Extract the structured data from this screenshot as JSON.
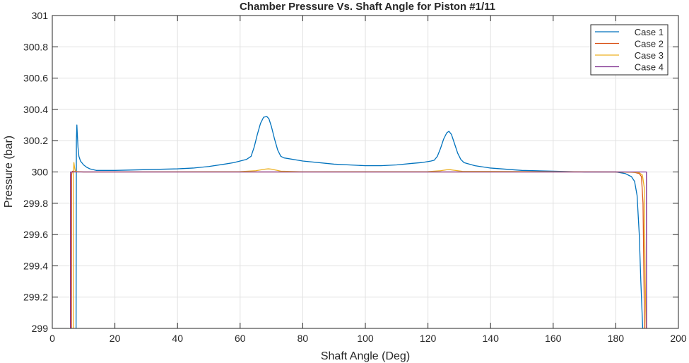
{
  "chart_data": {
    "type": "line",
    "title": "Chamber Pressure Vs. Shaft Angle for Piston #1/11",
    "xlabel": "Shaft Angle (Deg)",
    "ylabel": "Pressure (bar)",
    "xlim": [
      0,
      200
    ],
    "ylim": [
      299,
      301
    ],
    "xticks": [
      0,
      20,
      40,
      60,
      80,
      100,
      120,
      140,
      160,
      180,
      200
    ],
    "yticks": [
      299,
      299.2,
      299.4,
      299.6,
      299.8,
      300,
      300.2,
      300.4,
      300.6,
      300.8,
      301
    ],
    "xtick_labels": [
      "0",
      "20",
      "40",
      "60",
      "80",
      "100",
      "120",
      "140",
      "160",
      "180",
      "200"
    ],
    "ytick_labels": [
      "299",
      "299.2",
      "299.4",
      "299.6",
      "299.8",
      "300",
      "300.2",
      "300.4",
      "300.6",
      "300.8",
      "301"
    ],
    "grid": true,
    "legend_position": "top-right",
    "series": [
      {
        "name": "Case 1",
        "color": "#0072BD",
        "x": [
          7.6,
          7.7,
          7.85,
          8.0,
          8.2,
          8.5,
          9,
          10,
          11,
          12,
          13,
          14,
          16,
          20,
          30,
          40,
          45,
          50,
          55,
          58,
          60,
          62,
          63.5,
          64.5,
          65.5,
          66.5,
          67.5,
          68.5,
          69.2,
          70,
          71,
          72,
          73,
          74,
          80,
          90,
          100,
          105,
          110,
          115,
          118,
          121,
          122,
          123,
          124,
          125,
          126,
          126.7,
          127.5,
          128.5,
          129.5,
          130.5,
          131.5,
          135,
          140,
          150,
          160,
          170,
          180,
          183,
          185,
          186,
          186.8,
          187.5,
          188,
          188.4,
          188.6
        ],
        "y": [
          299,
          300.2,
          300.3,
          300.24,
          300.16,
          300.1,
          300.07,
          300.045,
          300.03,
          300.02,
          300.015,
          300.01,
          300.01,
          300.01,
          300.015,
          300.02,
          300.025,
          300.035,
          300.05,
          300.06,
          300.07,
          300.08,
          300.1,
          300.16,
          300.24,
          300.31,
          300.35,
          300.355,
          300.34,
          300.29,
          300.21,
          300.14,
          300.1,
          300.09,
          300.07,
          300.05,
          300.04,
          300.04,
          300.045,
          300.055,
          300.06,
          300.07,
          300.075,
          300.1,
          300.15,
          300.21,
          300.25,
          300.26,
          300.24,
          300.18,
          300.12,
          300.08,
          300.06,
          300.04,
          300.025,
          300.01,
          300.005,
          300.0,
          300.0,
          299.99,
          299.97,
          299.94,
          299.85,
          299.6,
          299.3,
          299.1,
          299
        ]
      },
      {
        "name": "Case 2",
        "color": "#D95319",
        "x": [
          6.1,
          6.15,
          6.3,
          6.5,
          7,
          10,
          50,
          100,
          150,
          180,
          184,
          186,
          187.5,
          188.2,
          188.7,
          189,
          189.2
        ],
        "y": [
          299,
          299.98,
          300.0,
          300.005,
          300.002,
          300.0,
          300.0,
          300.0,
          300.0,
          300.0,
          299.999,
          299.997,
          299.99,
          299.97,
          299.8,
          299.3,
          299
        ]
      },
      {
        "name": "Case 3",
        "color": "#EDB120",
        "x": [
          6.7,
          6.75,
          6.9,
          7.1,
          7.3,
          7.5,
          8,
          10,
          60,
          65,
          68,
          69,
          70,
          73,
          80,
          120,
          124,
          126,
          127,
          128,
          131,
          180,
          185,
          187.5,
          188.5,
          189.1,
          189.4,
          189.7
        ],
        "y": [
          299,
          299.98,
          300.06,
          300.03,
          300.01,
          300.005,
          300.002,
          300.0,
          300.002,
          300.008,
          300.018,
          300.02,
          300.018,
          300.005,
          300.001,
          300.002,
          300.008,
          300.014,
          300.015,
          300.012,
          300.004,
          300.0,
          299.999,
          299.995,
          299.98,
          299.9,
          299.3,
          299
        ]
      },
      {
        "name": "Case 4",
        "color": "#7E2F8E",
        "x": [
          5.8,
          5.82,
          6.2,
          10,
          100,
          189.8,
          189.82
        ],
        "y": [
          299,
          300.0,
          300.0,
          300.0,
          300.0,
          300.0,
          299
        ]
      }
    ]
  }
}
